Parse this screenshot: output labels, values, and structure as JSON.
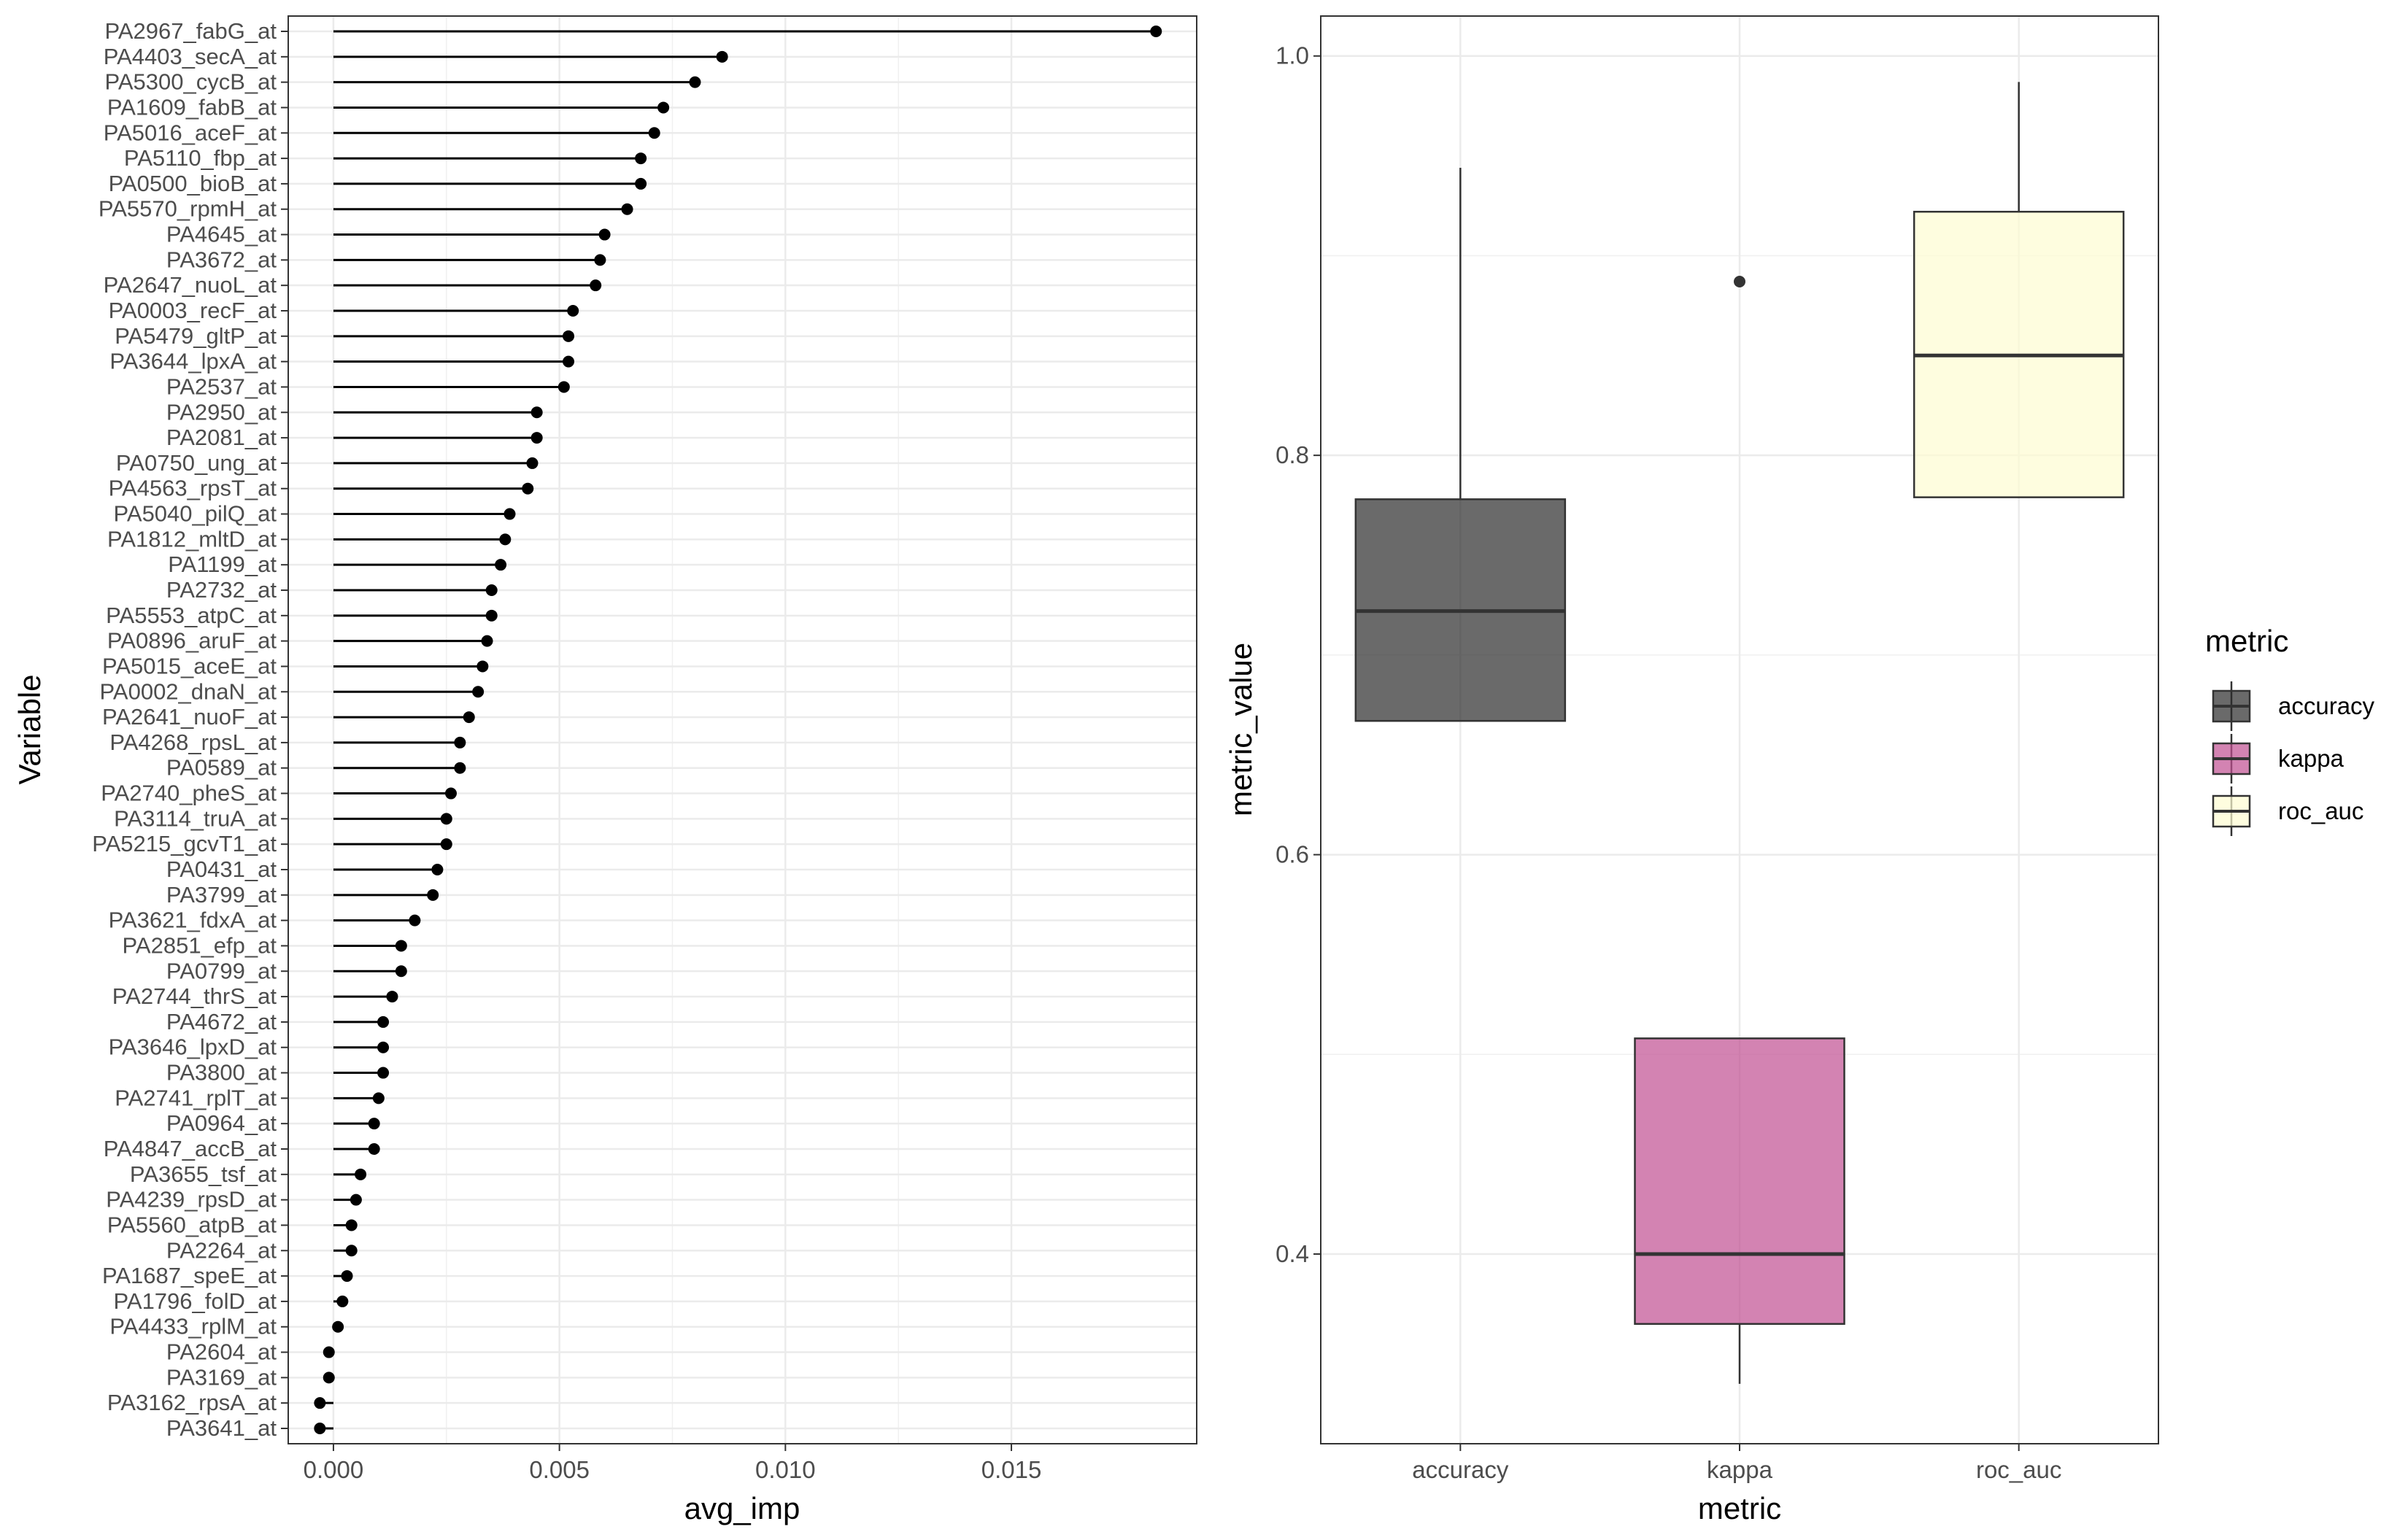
{
  "chart_data": [
    {
      "type": "lollipop",
      "xlabel": "avg_imp",
      "ylabel": "Variable",
      "xlim": [
        -0.001,
        0.0191
      ],
      "xticks": [
        0.0,
        0.005,
        0.01,
        0.015
      ],
      "xtick_labels": [
        "0.000",
        "0.005",
        "0.010",
        "0.015"
      ],
      "grid": true,
      "categories": [
        "PA2967_fabG_at",
        "PA4403_secA_at",
        "PA5300_cycB_at",
        "PA1609_fabB_at",
        "PA5016_aceF_at",
        "PA5110_fbp_at",
        "PA0500_bioB_at",
        "PA5570_rpmH_at",
        "PA4645_at",
        "PA3672_at",
        "PA2647_nuoL_at",
        "PA0003_recF_at",
        "PA5479_gltP_at",
        "PA3644_lpxA_at",
        "PA2537_at",
        "PA2950_at",
        "PA2081_at",
        "PA0750_ung_at",
        "PA4563_rpsT_at",
        "PA5040_pilQ_at",
        "PA1812_mltD_at",
        "PA1199_at",
        "PA2732_at",
        "PA5553_atpC_at",
        "PA0896_aruF_at",
        "PA5015_aceE_at",
        "PA0002_dnaN_at",
        "PA2641_nuoF_at",
        "PA4268_rpsL_at",
        "PA0589_at",
        "PA2740_pheS_at",
        "PA3114_truA_at",
        "PA5215_gcvT1_at",
        "PA0431_at",
        "PA3799_at",
        "PA3621_fdxA_at",
        "PA2851_efp_at",
        "PA0799_at",
        "PA2744_thrS_at",
        "PA4672_at",
        "PA3646_lpxD_at",
        "PA3800_at",
        "PA2741_rplT_at",
        "PA0964_at",
        "PA4847_accB_at",
        "PA3655_tsf_at",
        "PA4239_rpsD_at",
        "PA5560_atpB_at",
        "PA2264_at",
        "PA1687_speE_at",
        "PA1796_folD_at",
        "PA4433_rplM_at",
        "PA2604_at",
        "PA3169_at",
        "PA3162_rpsA_at",
        "PA3641_at"
      ],
      "values": [
        0.0182,
        0.0086,
        0.008,
        0.0073,
        0.0071,
        0.0068,
        0.0068,
        0.0065,
        0.006,
        0.0059,
        0.0058,
        0.0053,
        0.0052,
        0.0052,
        0.0051,
        0.0045,
        0.0045,
        0.0044,
        0.0043,
        0.0039,
        0.0038,
        0.0037,
        0.0035,
        0.0035,
        0.0034,
        0.0033,
        0.0032,
        0.003,
        0.0028,
        0.0028,
        0.0026,
        0.0025,
        0.0025,
        0.0023,
        0.0022,
        0.0018,
        0.0015,
        0.0015,
        0.0013,
        0.0011,
        0.0011,
        0.0011,
        0.001,
        0.0009,
        0.0009,
        0.0006,
        0.0005,
        0.0004,
        0.0004,
        0.0003,
        0.0002,
        0.0001,
        -0.0001,
        -0.0001,
        -0.0003,
        -0.0003
      ]
    },
    {
      "type": "boxplot",
      "xlabel": "metric",
      "ylabel": "metric_value",
      "ylim": [
        0.305,
        1.02
      ],
      "yticks": [
        0.4,
        0.6,
        0.8,
        1.0
      ],
      "ytick_labels": [
        "0.4",
        "0.6",
        "0.8",
        "1.0"
      ],
      "grid": true,
      "categories": [
        "accuracy",
        "kappa",
        "roc_auc"
      ],
      "series": [
        {
          "name": "accuracy",
          "min": 0.667,
          "q1": 0.667,
          "median": 0.722,
          "q3": 0.778,
          "max": 0.944,
          "outliers": [],
          "color": "#2b2b2b"
        },
        {
          "name": "kappa",
          "min": 0.335,
          "q1": 0.365,
          "median": 0.4,
          "q3": 0.508,
          "max": 0.508,
          "outliers": [
            0.887
          ],
          "color": "#c04f91"
        },
        {
          "name": "roc_auc",
          "min": 0.779,
          "q1": 0.779,
          "median": 0.85,
          "q3": 0.922,
          "max": 0.987,
          "outliers": [],
          "color": "#fdfcd2"
        }
      ],
      "legend": {
        "title": "metric",
        "position": "right",
        "entries": [
          "accuracy",
          "kappa",
          "roc_auc"
        ]
      }
    }
  ]
}
